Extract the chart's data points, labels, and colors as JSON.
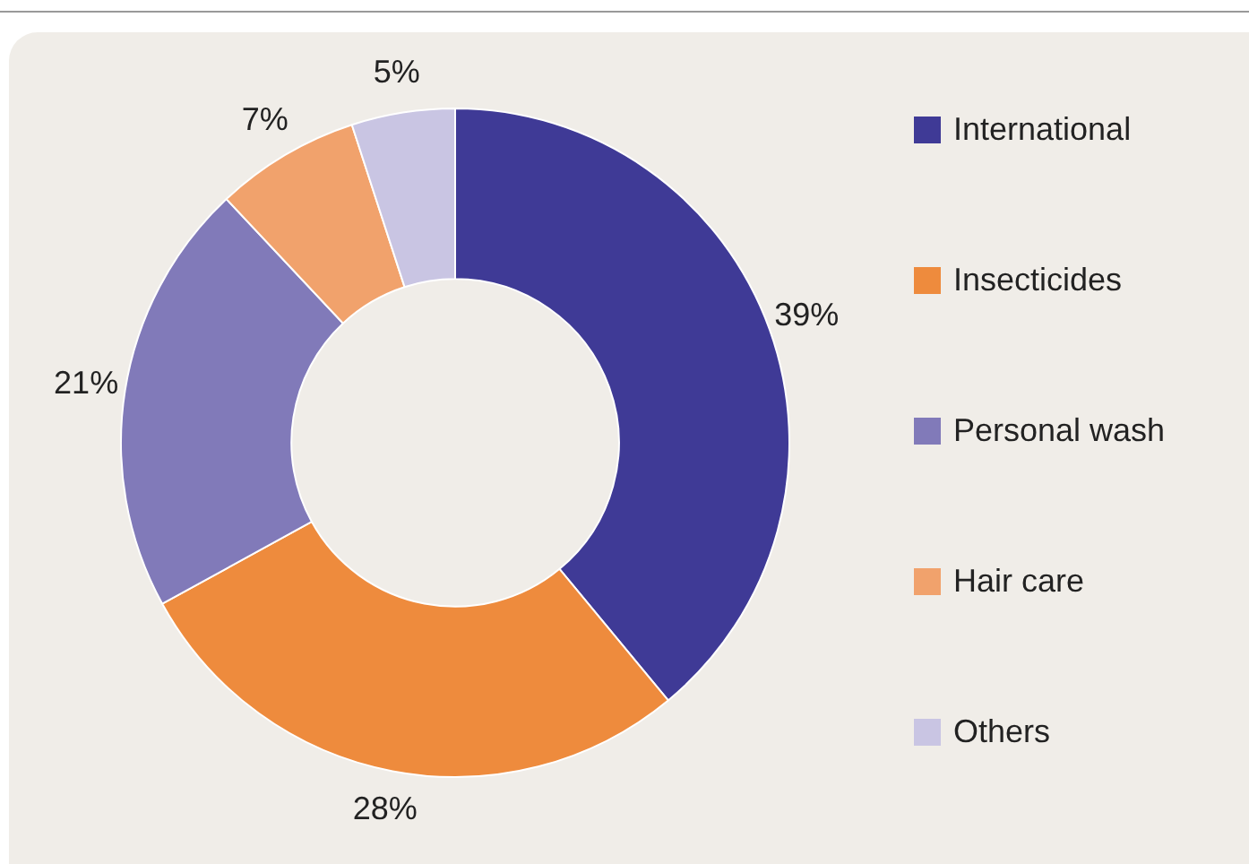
{
  "chart_data": {
    "type": "donut",
    "categories": [
      "International",
      "Insecticides",
      "Personal wash",
      "Hair care",
      "Others"
    ],
    "values": [
      39,
      28,
      21,
      7,
      5
    ],
    "value_labels": [
      "39%",
      "28%",
      "21%",
      "7%",
      "5%"
    ],
    "colors": [
      "#3f3a96",
      "#ee8b3d",
      "#817ab9",
      "#f1a26c",
      "#c9c5e3"
    ],
    "legend": "right"
  }
}
